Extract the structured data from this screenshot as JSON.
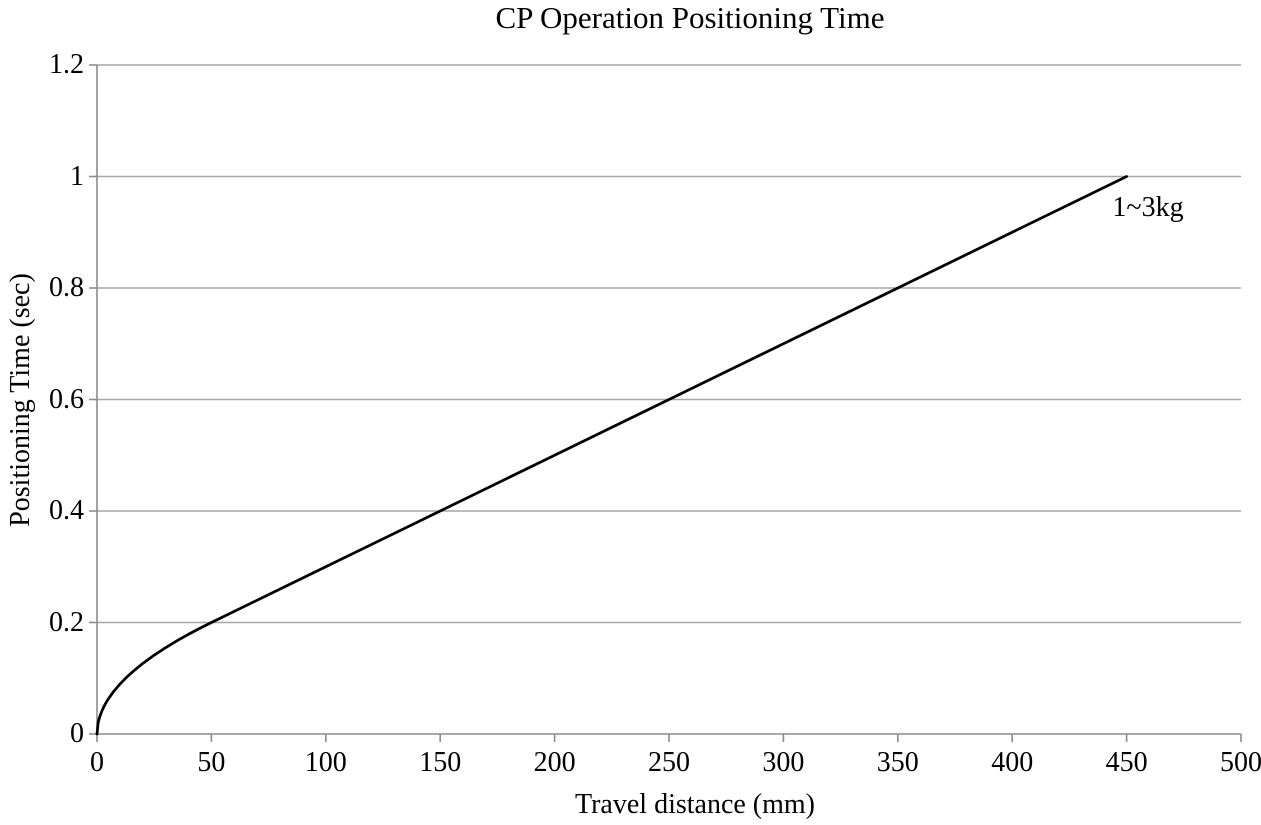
{
  "chart_data": {
    "type": "line",
    "title": "CP Operation Positioning Time",
    "xlabel": "Travel distance (mm)",
    "ylabel": "Positioning Time (sec)",
    "xlim": [
      0,
      500
    ],
    "ylim": [
      0,
      1.2
    ],
    "x_ticks": [
      0,
      50,
      100,
      150,
      200,
      250,
      300,
      350,
      400,
      450,
      500
    ],
    "x_tick_labels": [
      "0",
      "50",
      "100",
      "150",
      "200",
      "250",
      "300",
      "350",
      "400",
      "450",
      "500"
    ],
    "y_ticks": [
      0,
      0.2,
      0.4,
      0.6,
      0.8,
      1.0,
      1.2
    ],
    "y_tick_labels": [
      "0",
      "0.2",
      "0.4",
      "0.6",
      "0.8",
      "1",
      "1.2"
    ],
    "grid": "horizontal-only",
    "legend_position": "inline-annotation-near-line-end",
    "colors": {
      "background": "#ffffff",
      "line": "#000000",
      "gridline": "#a6a6a6",
      "axis": "#8c8c8c",
      "text": "#000000"
    },
    "series": [
      {
        "name": "1~3kg",
        "color": "#000000",
        "x": [
          0,
          0.5,
          1,
          2,
          3,
          4,
          5,
          7,
          10,
          13,
          16,
          20,
          25,
          30,
          35,
          40,
          45,
          50,
          75,
          100,
          150,
          200,
          250,
          300,
          350,
          400,
          450
        ],
        "y": [
          0,
          0.02,
          0.0283,
          0.04,
          0.049,
          0.0566,
          0.0632,
          0.0748,
          0.0894,
          0.102,
          0.1131,
          0.1265,
          0.1414,
          0.1549,
          0.1673,
          0.1789,
          0.1897,
          0.2,
          0.25,
          0.3,
          0.4,
          0.5,
          0.6,
          0.7,
          0.8,
          0.9,
          1.0
        ]
      }
    ]
  }
}
